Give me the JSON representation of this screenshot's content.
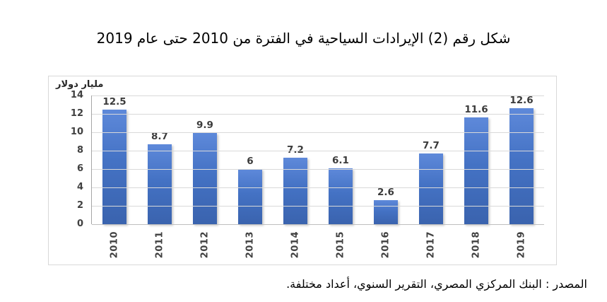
{
  "title": "شكل رقم (2) الإيرادات السياحية في الفترة من 2010 حتى عام 2019",
  "source": "المصدر : البنك المركزي المصري، التقرير السنوي، أعداد مختلفة.",
  "chart_data": {
    "type": "bar",
    "title": "شكل رقم (2) الإيرادات السياحية في الفترة من 2010 حتى عام 2019",
    "ylabel": "مليار دولار",
    "xlabel": "",
    "categories": [
      "2010",
      "2011",
      "2012",
      "2013",
      "2014",
      "2015",
      "2016",
      "2017",
      "2018",
      "2019"
    ],
    "values": [
      12.5,
      8.7,
      9.9,
      6,
      7.2,
      6.1,
      2.6,
      7.7,
      11.6,
      12.6
    ],
    "value_labels": [
      "12.5",
      "8.7",
      "9.9",
      "6",
      "7.2",
      "6.1",
      "2.6",
      "7.7",
      "11.6",
      "12.6"
    ],
    "ylim": [
      0,
      14
    ],
    "yticks": [
      0,
      2,
      4,
      6,
      8,
      10,
      12,
      14
    ],
    "grid": "horizontal",
    "legend": "none",
    "colors": {
      "bar": "#4472c4",
      "bar_light": "#5e89da",
      "bar_dark": "#3a63ae",
      "gridline": "#d9d9d9",
      "axis": "#a6a6a6",
      "label": "#404040"
    }
  }
}
